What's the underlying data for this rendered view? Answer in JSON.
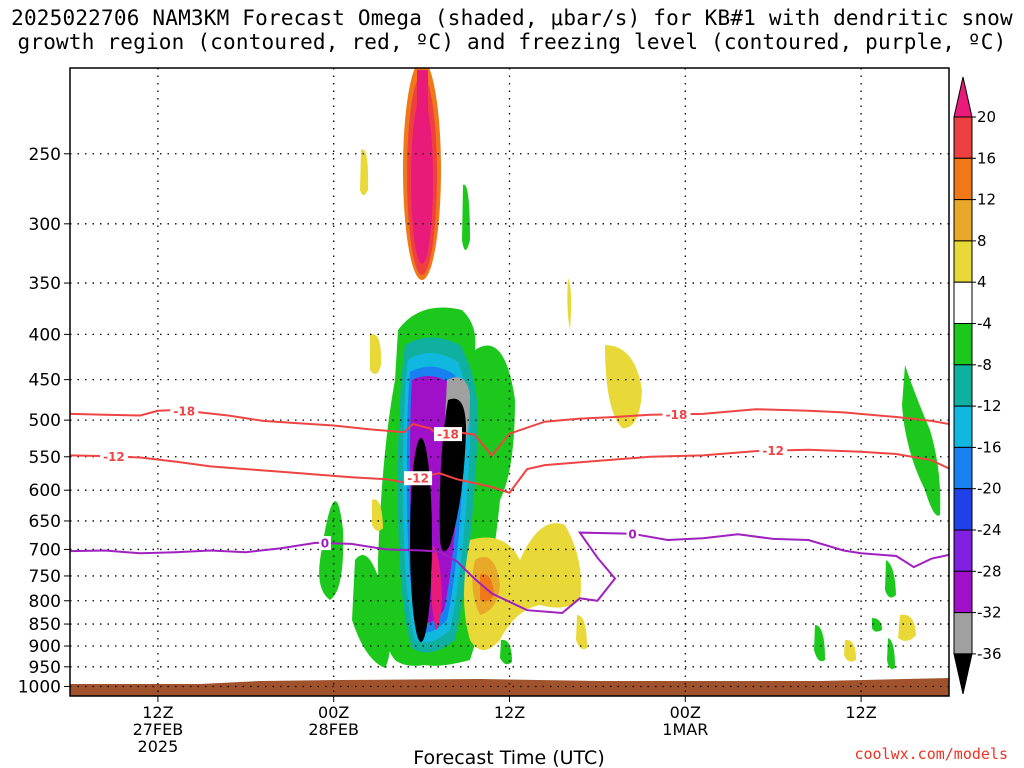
{
  "title": {
    "line1": "2025022706 NAM3KM Forecast Omega (shaded, μbar/s) for KB#1 with dendritic snow",
    "line2": "growth region (contoured, red, ºC) and freezing level (contoured, purple, ºC)"
  },
  "credit": "coolwx.com/models",
  "chart_data": {
    "type": "heatmap",
    "title": "2025022706 NAM3KM Forecast Omega (shaded, μbar/s) for KB#1 with dendritic snow growth region (contoured, red, ºC) and freezing level (contoured, purple, ºC)",
    "xlabel": "Forecast Time (UTC)",
    "ylabel": "",
    "x_hours_range": [
      -11,
      39
    ],
    "y_pressure_range": [
      1025,
      200
    ],
    "y_scale": "log (pressure, decreasing upward)",
    "x_ticks": [
      {
        "hour": -6,
        "lines": [
          "12Z",
          "27FEB",
          "2025"
        ]
      },
      {
        "hour": 4,
        "lines": [
          "00Z",
          "28FEB"
        ]
      },
      {
        "hour": 14,
        "lines": [
          "12Z"
        ]
      },
      {
        "hour": 24,
        "lines": [
          "00Z",
          "1MAR"
        ]
      },
      {
        "hour": 34,
        "lines": [
          "12Z"
        ]
      }
    ],
    "y_ticks": [
      250,
      300,
      350,
      400,
      450,
      500,
      550,
      600,
      650,
      700,
      750,
      800,
      850,
      900,
      950,
      1000
    ],
    "grid": true,
    "colorbar": {
      "labels": [
        "20",
        "16",
        "12",
        "8",
        "4",
        "-4",
        "-8",
        "-12",
        "-16",
        "-20",
        "-24",
        "-28",
        "-32",
        "-36"
      ],
      "colors": [
        "#e81a7a",
        "#ee4040",
        "#f07818",
        "#e8a828",
        "#e8d838",
        "#ffffff",
        "#1cc81c",
        "#10b0a0",
        "#10b8e0",
        "#1880f0",
        "#2040e8",
        "#8020e0",
        "#a010c8",
        "#a0a0a0",
        "#000000"
      ]
    },
    "contours": [
      {
        "label": "-18",
        "color": "#ee4444",
        "points": [
          [
            -11,
            492
          ],
          [
            -9,
            493
          ],
          [
            -7,
            494
          ],
          [
            -6,
            488
          ],
          [
            -5,
            487
          ],
          [
            -4,
            489
          ],
          [
            -2,
            494
          ],
          [
            0,
            501
          ],
          [
            2,
            504
          ],
          [
            4,
            507
          ],
          [
            6,
            512
          ],
          [
            8,
            516
          ],
          [
            8.5,
            505
          ],
          [
            9.5,
            511
          ],
          [
            10,
            521
          ],
          [
            11,
            516
          ],
          [
            12,
            519
          ],
          [
            13,
            548
          ],
          [
            14,
            518
          ],
          [
            16,
            502
          ],
          [
            18,
            498
          ],
          [
            20,
            496
          ],
          [
            22,
            493
          ],
          [
            25,
            492
          ],
          [
            28,
            486
          ],
          [
            31,
            488
          ],
          [
            33,
            490
          ],
          [
            36,
            496
          ],
          [
            38,
            501
          ],
          [
            39,
            505
          ]
        ]
      },
      {
        "label": "-12",
        "color": "#ee4444",
        "points": [
          [
            -11,
            548
          ],
          [
            -9,
            549
          ],
          [
            -7,
            551
          ],
          [
            -5,
            557
          ],
          [
            -3,
            564
          ],
          [
            -1,
            568
          ],
          [
            1,
            572
          ],
          [
            3,
            576
          ],
          [
            5,
            580
          ],
          [
            7,
            583
          ],
          [
            8,
            588
          ],
          [
            9,
            580
          ],
          [
            10,
            574
          ],
          [
            11,
            583
          ],
          [
            13,
            595
          ],
          [
            14,
            604
          ],
          [
            15,
            568
          ],
          [
            16,
            562
          ],
          [
            19,
            556
          ],
          [
            22,
            550
          ],
          [
            25,
            548
          ],
          [
            28,
            542
          ],
          [
            31,
            540
          ],
          [
            34,
            543
          ],
          [
            36,
            546
          ],
          [
            38,
            555
          ],
          [
            39,
            567
          ]
        ]
      },
      {
        "label": "0",
        "color": "#a020c0",
        "points": [
          [
            -11,
            703
          ],
          [
            -9,
            702
          ],
          [
            -7,
            707
          ],
          [
            -5,
            705
          ],
          [
            -3,
            702
          ],
          [
            -1,
            705
          ],
          [
            1,
            698
          ],
          [
            3,
            688
          ],
          [
            5,
            690
          ],
          [
            7,
            700
          ],
          [
            9,
            702
          ],
          [
            10,
            704
          ],
          [
            11,
            722
          ],
          [
            12,
            755
          ],
          [
            13,
            785
          ],
          [
            15,
            820
          ],
          [
            17,
            826
          ],
          [
            18,
            795
          ],
          [
            19,
            800
          ],
          [
            20,
            755
          ],
          [
            19,
            715
          ],
          [
            18,
            670
          ],
          [
            21,
            672
          ],
          [
            23,
            683
          ],
          [
            25,
            680
          ],
          [
            27,
            673
          ],
          [
            29,
            681
          ],
          [
            31,
            683
          ],
          [
            33,
            702
          ],
          [
            34,
            707
          ],
          [
            36,
            712
          ],
          [
            37,
            733
          ],
          [
            38,
            717
          ],
          [
            39,
            710
          ]
        ]
      }
    ]
  }
}
